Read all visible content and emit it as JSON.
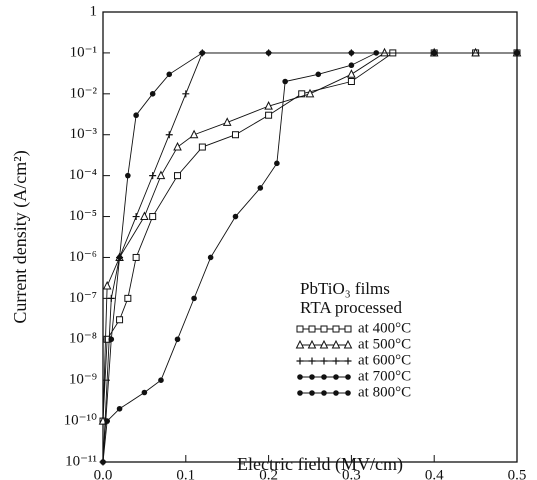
{
  "chart_data": {
    "type": "line",
    "xlabel": "Electric field (MV/cm)",
    "ylabel": "Current density (A/cm²)",
    "log_y": true,
    "xlim": [
      0,
      0.5
    ],
    "xticks": [
      {
        "value": 0,
        "label": "0.0"
      },
      0.1,
      0.2,
      0.3,
      0.4,
      0.5
    ],
    "ylim": [
      1e-11,
      1
    ],
    "yticks": [
      {
        "value": 1e-11,
        "label": "10⁻¹¹"
      },
      {
        "value": 1e-10,
        "label": "10⁻¹⁰"
      },
      {
        "value": 1e-09,
        "label": "10⁻⁹"
      },
      {
        "value": 1e-08,
        "label": "10⁻⁸"
      },
      {
        "value": 1e-07,
        "label": "10⁻⁷"
      },
      {
        "value": 1e-06,
        "label": "10⁻⁶"
      },
      {
        "value": 1e-05,
        "label": "10⁻⁵"
      },
      {
        "value": 0.0001,
        "label": "10⁻⁴"
      },
      {
        "value": 0.001,
        "label": "10⁻³"
      },
      {
        "value": 0.01,
        "label": "10⁻²"
      },
      {
        "value": 0.1,
        "label": "10⁻¹"
      },
      1
    ],
    "legend_title": [
      "PbTiO₃ films",
      "RTA processed"
    ],
    "legend": "lower right",
    "series": [
      {
        "name": "at 400°C",
        "color": "#111",
        "marker": "square",
        "x": [
          0,
          0.005,
          0.02,
          0.03,
          0.04,
          0.06,
          0.09,
          0.12,
          0.16,
          0.2,
          0.24,
          0.3,
          0.35,
          0.4,
          0.45,
          0.5
        ],
        "values": [
          1e-10,
          1e-08,
          3e-08,
          1e-07,
          1e-06,
          1e-05,
          0.0001,
          0.0005,
          0.001,
          0.003,
          0.01,
          0.02,
          0.1,
          0.1,
          0.1,
          0.1
        ]
      },
      {
        "name": "at 500°C",
        "color": "#111",
        "marker": "triangle",
        "x": [
          0,
          0.005,
          0.02,
          0.05,
          0.07,
          0.09,
          0.11,
          0.15,
          0.2,
          0.25,
          0.3,
          0.34,
          0.4,
          0.45,
          0.5
        ],
        "values": [
          1e-10,
          2e-07,
          1e-06,
          1e-05,
          0.0001,
          0.0005,
          0.001,
          0.002,
          0.005,
          0.01,
          0.03,
          0.1,
          0.1,
          0.1,
          0.1
        ]
      },
      {
        "name": "at 600°C",
        "color": "#111",
        "marker": "plus",
        "x": [
          0,
          0.01,
          0.02,
          0.04,
          0.06,
          0.08,
          0.1,
          0.12,
          0.2,
          0.3,
          0.4,
          0.5
        ],
        "values": [
          1e-11,
          1e-07,
          1e-06,
          1e-05,
          0.0001,
          0.001,
          0.01,
          0.1,
          0.1,
          0.1,
          0.1,
          0.1
        ]
      },
      {
        "name": "at 700°C",
        "color": "#111",
        "marker": "dot",
        "x": [
          0,
          0.01,
          0.02,
          0.03,
          0.04,
          0.06,
          0.08,
          0.12,
          0.2,
          0.3,
          0.4,
          0.5
        ],
        "values": [
          1e-11,
          1e-08,
          1e-06,
          0.0001,
          0.003,
          0.01,
          0.03,
          0.1,
          0.1,
          0.1,
          0.1,
          0.1
        ]
      },
      {
        "name": "at 800°C",
        "color": "#111",
        "marker": "dot",
        "x": [
          0,
          0.005,
          0.02,
          0.05,
          0.07,
          0.09,
          0.11,
          0.13,
          0.16,
          0.19,
          0.21,
          0.22,
          0.26,
          0.3,
          0.33,
          0.4,
          0.5
        ],
        "values": [
          1e-11,
          1e-10,
          2e-10,
          5e-10,
          1e-09,
          1e-08,
          1e-07,
          1e-06,
          1e-05,
          5e-05,
          0.0002,
          0.02,
          0.03,
          0.05,
          0.1,
          0.1,
          0.1
        ]
      }
    ]
  }
}
